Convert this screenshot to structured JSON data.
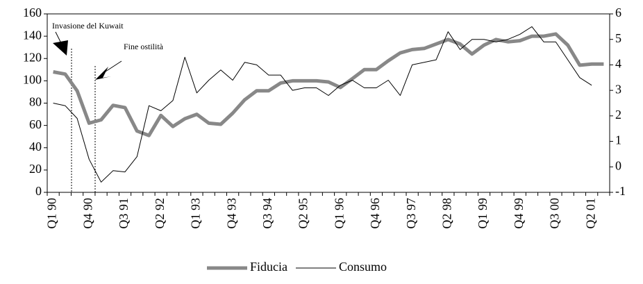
{
  "chart_data": {
    "type": "line",
    "categories": [
      "Q1 90",
      null,
      null,
      "Q4 90",
      null,
      null,
      "Q3 91",
      null,
      null,
      "Q2 92",
      null,
      null,
      "Q1 93",
      null,
      null,
      "Q4 93",
      null,
      null,
      "Q3 94",
      null,
      null,
      "Q2 95",
      null,
      null,
      "Q1 96",
      null,
      null,
      "Q4 96",
      null,
      null,
      "Q3 97",
      null,
      null,
      "Q2 98",
      null,
      null,
      "Q1 99",
      null,
      null,
      "Q4 99",
      null,
      null,
      "Q3 00",
      null,
      null,
      "Q2 01",
      null
    ],
    "series": [
      {
        "name": "Fiducia",
        "color": "#888888",
        "values": [
          108,
          106,
          91,
          62,
          65,
          78,
          76,
          55,
          51,
          69,
          59,
          66,
          70,
          62,
          61,
          71,
          83,
          91,
          91,
          98,
          100,
          100,
          100,
          99,
          94,
          102,
          110,
          110,
          118,
          125,
          128,
          129,
          133,
          137,
          133,
          124,
          132,
          137,
          135,
          136,
          140,
          140,
          142,
          132,
          114,
          115,
          115
        ]
      },
      {
        "name": "Consumo",
        "color": "#000000",
        "axis": "y2",
        "values": [
          2.5,
          2.4,
          1.9,
          0.3,
          -0.6,
          -0.15,
          -0.2,
          0.4,
          2.4,
          2.2,
          2.6,
          4.3,
          2.9,
          3.4,
          3.8,
          3.4,
          4.1,
          4.0,
          3.6,
          3.6,
          3.0,
          3.1,
          3.1,
          2.8,
          3.2,
          3.4,
          3.1,
          3.1,
          3.4,
          2.8,
          4.0,
          4.1,
          4.2,
          5.3,
          4.6,
          5.0,
          5.0,
          4.9,
          5.0,
          5.2,
          5.5,
          4.9,
          4.9,
          4.2,
          3.5,
          3.2,
          null
        ]
      }
    ],
    "ylim": [
      0,
      160
    ],
    "yticks": [
      0,
      20,
      40,
      60,
      80,
      100,
      120,
      140,
      160
    ],
    "y2lim": [
      -1,
      6
    ],
    "y2ticks": [
      -1,
      0,
      1,
      2,
      3,
      4,
      5,
      6
    ],
    "annotations": [
      "Invasione del Kuwait",
      "Fine ostilità"
    ],
    "legend": "bottom"
  }
}
